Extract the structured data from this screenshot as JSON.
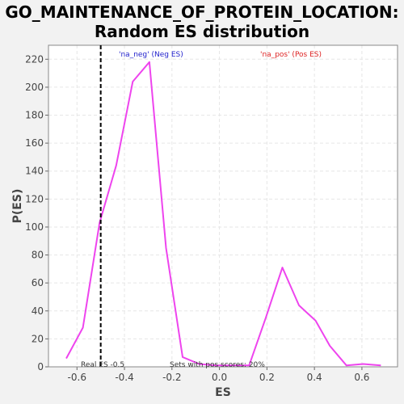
{
  "title_line1": "GO_MAINTENANCE_OF_PROTEIN_LOCATION:",
  "title_line2": "Random ES distribution",
  "colors": {
    "background": "#f2f2f2",
    "plot_bg": "#ffffff",
    "grid": "#e6e6e6",
    "curve": "#ee44ee",
    "neg_label": "#2222cc",
    "pos_label": "#dd2222",
    "real_es_line": "#000000"
  },
  "chart_data": {
    "type": "line",
    "xlabel": "ES",
    "ylabel": "P(ES)",
    "xlim": [
      -0.72,
      0.75
    ],
    "ylim": [
      0,
      230
    ],
    "grid": true,
    "x_ticks": [
      -0.6,
      -0.4,
      -0.2,
      0.0,
      0.2,
      0.4,
      0.6
    ],
    "x_tick_labels": [
      "-0.6",
      "-0.4",
      "-0.2",
      "0.0",
      "0.2",
      "0.4",
      "0.6"
    ],
    "y_ticks": [
      0,
      20,
      40,
      60,
      80,
      100,
      120,
      140,
      160,
      180,
      200,
      220
    ],
    "y_tick_labels": [
      "0",
      "20",
      "40",
      "60",
      "80",
      "100",
      "120",
      "140",
      "160",
      "180",
      "200",
      "220"
    ],
    "series": [
      {
        "x": [
          -0.645,
          -0.575,
          -0.505,
          -0.435,
          -0.365,
          -0.295,
          -0.225,
          -0.155,
          -0.085,
          -0.015,
          0.055,
          0.125,
          0.195,
          0.265,
          0.335,
          0.405,
          0.465,
          0.535,
          0.605,
          0.68
        ],
        "y": [
          6,
          28,
          103,
          144,
          204,
          218,
          85,
          7,
          2,
          1,
          1,
          1,
          35,
          71,
          44,
          33,
          15,
          1,
          2,
          1
        ]
      }
    ],
    "real_es": -0.5,
    "legend": {
      "neg": "'na_neg' (Neg ES)",
      "pos": "'na_pos' (Pos ES)"
    },
    "annotations": {
      "real_es": "Real ES -0.5",
      "pos_scores": "Sets with pos scores: 20%"
    }
  }
}
